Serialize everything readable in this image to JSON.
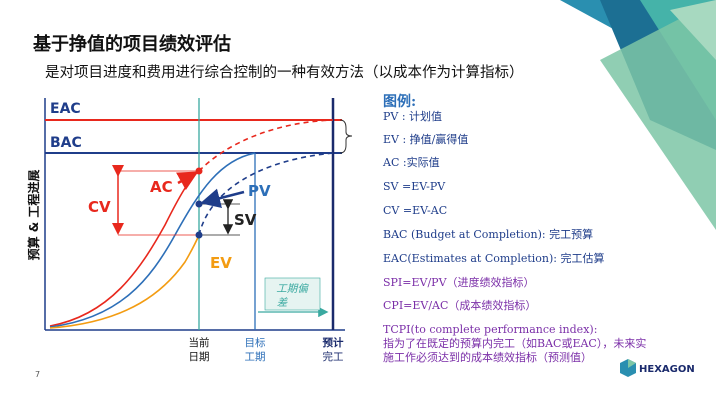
{
  "header": {
    "title": "基于挣值的项目绩效评估",
    "subtitle": "是对项目进度和费用进行综合控制的一种有效方法（以成本作为计算指标）"
  },
  "diagram": {
    "eac": "EAC",
    "bac": "BAC",
    "cv": "CV",
    "ac": "AC",
    "pv": "PV",
    "sv": "SV",
    "ev": "EV",
    "y_axis": "预算 & 工程进展",
    "x_labels": [
      [
        "当前",
        "日期"
      ],
      [
        "目标",
        "工期"
      ],
      [
        "预计",
        "完工"
      ]
    ],
    "duration_variance": [
      "工期偏",
      "差"
    ]
  },
  "legend": {
    "title": "图例:",
    "items": [
      "PV : 计划值",
      "EV : 挣值/赢得值",
      "AC :实际值",
      "SV =EV-PV",
      "CV =EV-AC",
      "BAC (Budget at Completion): 完工预算",
      "EAC(Estimates at Completion): 完工估算",
      "SPI=EV/PV（进度绩效指标）",
      "CPI=EV/AC（成本绩效指标）"
    ],
    "tcpi": [
      "TCPI(to complete performance index):",
      "指为了在既定的预算内完工（如BAC或EAC），未来实",
      "施工作必须达到的成本绩效指标（预测值）"
    ]
  },
  "footer": {
    "page": "7",
    "logo": "HEXAGON"
  }
}
